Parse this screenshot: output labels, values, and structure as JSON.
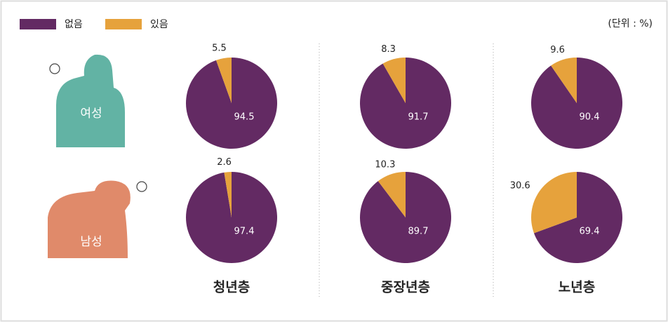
{
  "legend": [
    {
      "name": "없음",
      "color": "#632a63"
    },
    {
      "name": "있음",
      "color": "#e6a23c"
    }
  ],
  "unit": "(단위 : %)",
  "rows": [
    "여성",
    "남성"
  ],
  "columns": [
    "청년층",
    "중장년층",
    "노년층"
  ],
  "chart_data": [
    {
      "type": "pie",
      "values": [
        94.5,
        5.5
      ]
    },
    {
      "type": "pie",
      "values": [
        91.7,
        8.3
      ]
    },
    {
      "type": "pie",
      "values": [
        90.4,
        9.6
      ]
    },
    {
      "type": "pie",
      "values": [
        97.4,
        2.6
      ]
    },
    {
      "type": "pie",
      "values": [
        89.7,
        10.3
      ]
    },
    {
      "type": "pie",
      "values": [
        69.4,
        30.6
      ]
    }
  ]
}
